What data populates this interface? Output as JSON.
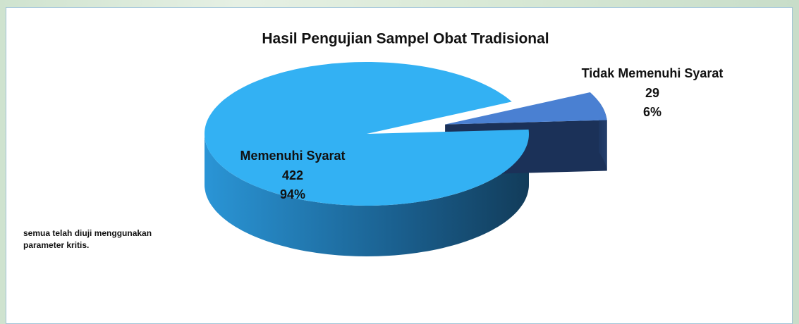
{
  "chart_data": {
    "type": "pie3d",
    "title": "Hasil Pengujian Sampel Obat Tradisional",
    "categories": [
      "Memenuhi Syarat",
      "Tidak Memenuhi Syarat"
    ],
    "values": [
      422,
      29
    ],
    "percent_labels": [
      "94%",
      "6%"
    ],
    "colors": [
      "#33b1f3",
      "#4a80d2"
    ],
    "explode": [
      false,
      true
    ],
    "annotation": "semua telah diuji menggunakan parameter kritis."
  }
}
